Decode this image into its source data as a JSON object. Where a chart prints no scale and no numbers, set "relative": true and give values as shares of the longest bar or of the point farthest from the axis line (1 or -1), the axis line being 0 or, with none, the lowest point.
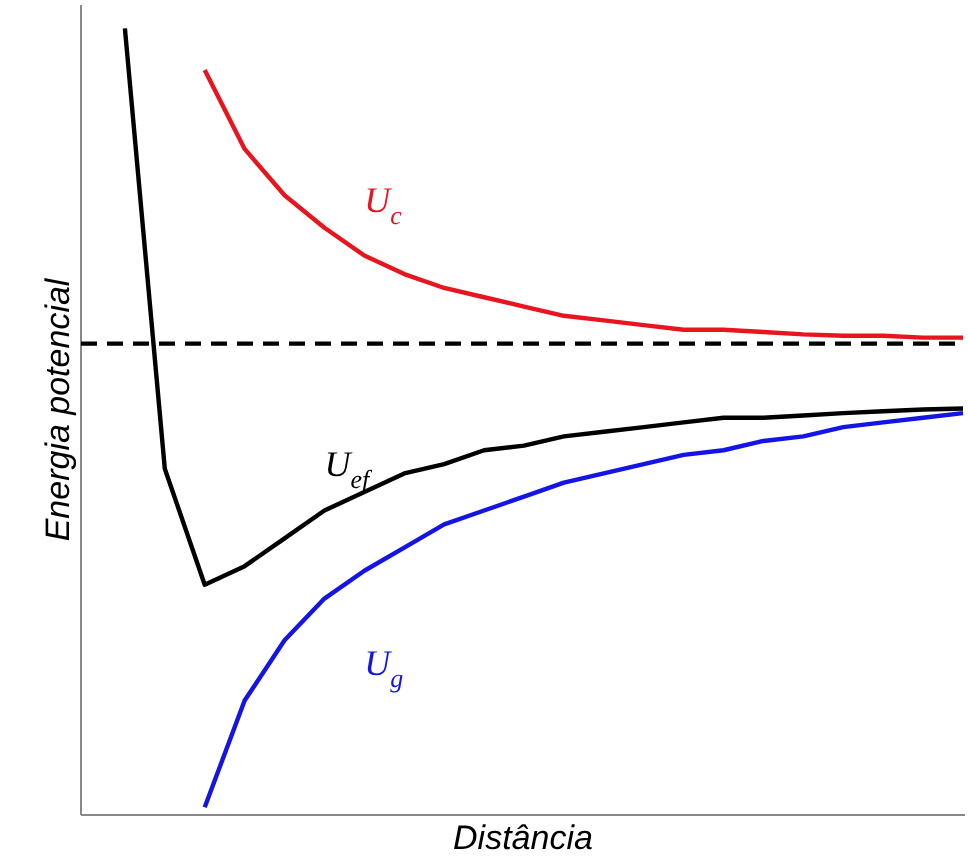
{
  "chart_data": {
    "type": "line",
    "relative": true,
    "xlabel": "Distância",
    "ylabel": "Energia potencial",
    "categories": [
      null,
      null,
      null,
      null,
      null,
      null,
      null,
      null,
      null,
      null,
      null,
      null,
      null,
      null,
      null,
      null,
      null,
      null,
      null,
      null,
      null,
      null,
      null
    ],
    "series": [
      {
        "name": "U$_{c}$",
        "color": "#e8141e",
        "values": [
          null,
          null,
          null,
          0.59,
          0.42,
          0.32,
          0.25,
          0.19,
          0.15,
          0.12,
          0.1,
          0.08,
          0.06,
          0.05,
          0.04,
          0.03,
          0.03,
          0.025,
          0.02,
          0.017,
          0.017,
          0.013,
          0.013
        ]
      },
      {
        "name": "U$_{ef}$",
        "color": "#000000",
        "values": [
          null,
          0.68,
          -0.27,
          -0.52,
          -0.48,
          -0.42,
          -0.36,
          -0.32,
          -0.28,
          -0.26,
          -0.23,
          -0.22,
          -0.2,
          -0.19,
          -0.18,
          -0.17,
          -0.16,
          -0.16,
          -0.155,
          -0.15,
          -0.146,
          -0.142,
          -0.14
        ]
      },
      {
        "name": "U$_{g}$",
        "color": "#1414e6",
        "values": [
          null,
          null,
          null,
          -1.0,
          -0.77,
          -0.64,
          -0.55,
          -0.49,
          -0.44,
          -0.39,
          -0.36,
          -0.33,
          -0.3,
          -0.28,
          -0.26,
          -0.24,
          -0.23,
          -0.21,
          -0.2,
          -0.18,
          -0.17,
          -0.16,
          -0.15
        ]
      }
    ],
    "ref_lines": [
      {
        "axis": "y",
        "value": 0,
        "color": "#000000",
        "line_style": "dashed"
      }
    ],
    "legend": false
  }
}
